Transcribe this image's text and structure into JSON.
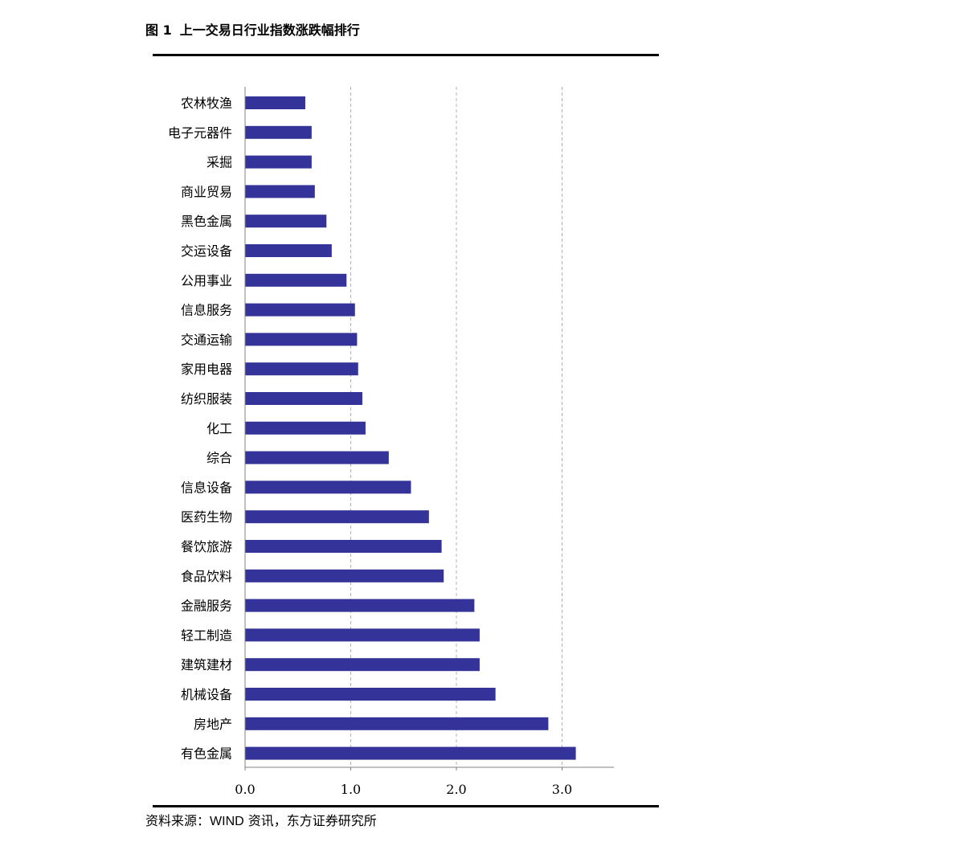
{
  "figure": {
    "label": "图 1",
    "title": "上一交易日行业指数涨跌幅排行"
  },
  "source": {
    "prefix": "资料来源：",
    "wind": "WIND",
    "rest": " 资讯，东方证券研究所"
  },
  "colors": {
    "bar": "#333399",
    "grid": "#b0b0b0",
    "axis": "#808080"
  },
  "chart_data": {
    "type": "bar",
    "orientation": "horizontal",
    "categories": [
      "农林牧渔",
      "电子元器件",
      "采掘",
      "商业贸易",
      "黑色金属",
      "交运设备",
      "公用事业",
      "信息服务",
      "交通运输",
      "家用电器",
      "纺织服装",
      "化工",
      "综合",
      "信息设备",
      "医药生物",
      "餐饮旅游",
      "食品饮料",
      "金融服务",
      "轻工制造",
      "建筑建材",
      "机械设备",
      "房地产",
      "有色金属"
    ],
    "values": [
      0.57,
      0.63,
      0.63,
      0.66,
      0.77,
      0.82,
      0.96,
      1.04,
      1.06,
      1.07,
      1.11,
      1.14,
      1.36,
      1.57,
      1.74,
      1.86,
      1.88,
      2.17,
      2.22,
      2.22,
      2.37,
      2.87,
      3.13
    ],
    "xlim": [
      0,
      3.5
    ],
    "xticks": [
      0,
      1,
      2,
      3
    ],
    "xtick_labels": [
      "0.0",
      "1.0",
      "2.0",
      "3.0"
    ],
    "grid": "vertical dashed",
    "legend": "none"
  }
}
